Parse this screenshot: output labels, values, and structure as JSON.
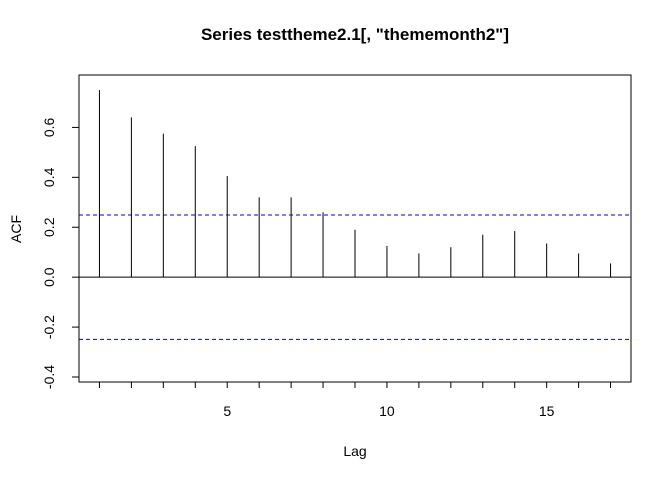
{
  "chart_data": {
    "type": "bar",
    "title": "Series  testtheme2.1[, \"thememonth2\"]",
    "xlabel": "Lag",
    "ylabel": "ACF",
    "x": [
      1,
      2,
      3,
      4,
      5,
      6,
      7,
      8,
      9,
      10,
      11,
      12,
      13,
      14,
      15,
      16,
      17
    ],
    "values": [
      0.75,
      0.64,
      0.575,
      0.525,
      0.405,
      0.32,
      0.32,
      0.26,
      0.19,
      0.125,
      0.095,
      0.12,
      0.17,
      0.185,
      0.135,
      0.095,
      0.055
    ],
    "xlim": [
      0.36,
      17.64
    ],
    "ylim": [
      -0.42,
      0.81
    ],
    "x_ticks": [
      5,
      10,
      15
    ],
    "x_tick_labels": [
      "5",
      "10",
      "15"
    ],
    "y_ticks": [
      -0.4,
      -0.2,
      0.0,
      0.2,
      0.4,
      0.6
    ],
    "y_tick_labels": [
      "-0.4",
      "-0.2",
      "0.0",
      "0.2",
      "0.4",
      "0.6"
    ],
    "confidence_bounds": [
      0.249,
      -0.249
    ],
    "zero_line": 0,
    "grid": false,
    "colors": {
      "bars": "#000000",
      "confidence": "#0000CD",
      "zero_line": "#000000"
    }
  }
}
